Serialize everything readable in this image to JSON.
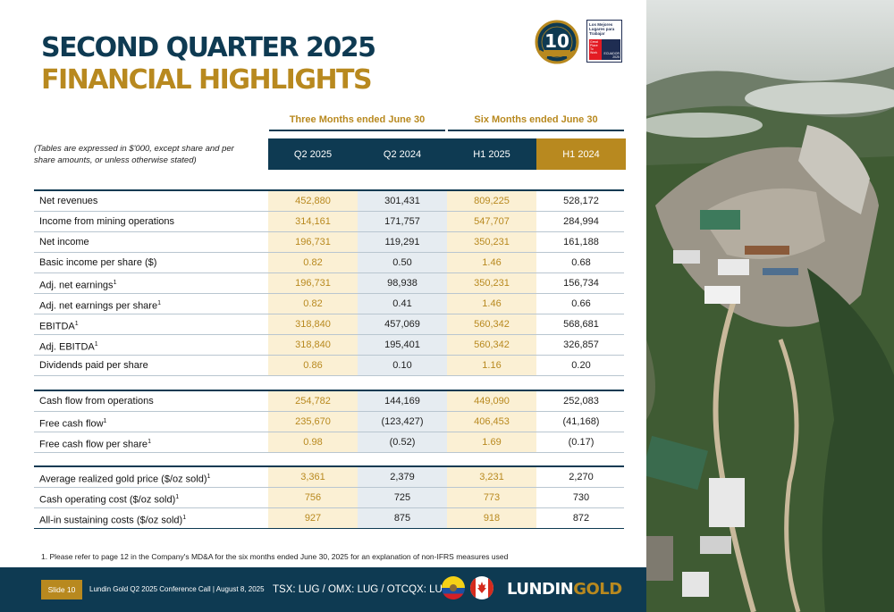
{
  "header": {
    "title_line1": "SECOND QUARTER 2025",
    "title_line2": "FINANCIAL HIGHLIGHTS",
    "anniversary_badge": "10",
    "gptw": {
      "heading": "Los Mejores Lugares para Trabajar",
      "left_block": "Great Place To Work",
      "right_block": "ECUADOR 2025"
    }
  },
  "table": {
    "group_headers": [
      "Three Months ended June 30",
      "Six Months ended June 30"
    ],
    "note": "(Tables are expressed in $'000, except share and per share amounts, or unless otherwise stated)",
    "columns": [
      "Q2 2025",
      "Q2 2024",
      "H1 2025",
      "H1 2024"
    ],
    "column_colors": [
      "#0e3a52",
      "#0e3a52",
      "#0e3a52",
      "#b8891f"
    ],
    "sections": [
      {
        "rows": [
          {
            "label": "Net revenues",
            "sup": "",
            "values": [
              "452,880",
              "301,431",
              "809,225",
              "528,172"
            ]
          },
          {
            "label": "Income from mining operations",
            "sup": "",
            "values": [
              "314,161",
              "171,757",
              "547,707",
              "284,994"
            ]
          },
          {
            "label": "Net income",
            "sup": "",
            "values": [
              "196,731",
              "119,291",
              "350,231",
              "161,188"
            ]
          },
          {
            "label": "Basic income per share ($)",
            "sup": "",
            "values": [
              "0.82",
              "0.50",
              "1.46",
              "0.68"
            ]
          },
          {
            "label": "Adj. net earnings",
            "sup": "1",
            "values": [
              "196,731",
              "98,938",
              "350,231",
              "156,734"
            ]
          },
          {
            "label": "Adj. net earnings per share",
            "sup": "1",
            "values": [
              "0.82",
              "0.41",
              "1.46",
              "0.66"
            ]
          },
          {
            "label": "EBITDA",
            "sup": "1",
            "values": [
              "318,840",
              "457,069",
              "560,342",
              "568,681"
            ]
          },
          {
            "label": "Adj. EBITDA",
            "sup": "1",
            "values": [
              "318,840",
              "195,401",
              "560,342",
              "326,857"
            ]
          },
          {
            "label": "Dividends paid per share",
            "sup": "",
            "values": [
              "0.86",
              "0.10",
              "1.16",
              "0.20"
            ]
          }
        ]
      },
      {
        "rows": [
          {
            "label": "Cash flow from operations",
            "sup": "",
            "values": [
              "254,782",
              "144,169",
              "449,090",
              "252,083"
            ]
          },
          {
            "label": "Free cash flow",
            "sup": "1",
            "values": [
              "235,670",
              "(123,427)",
              "406,453",
              "(41,168)"
            ]
          },
          {
            "label": "Free cash flow per share",
            "sup": "1",
            "values": [
              "0.98",
              "(0.52)",
              "1.69",
              "(0.17)"
            ]
          }
        ]
      },
      {
        "rows": [
          {
            "label": "Average realized gold price ($/oz sold)",
            "sup": "1",
            "values": [
              "3,361",
              "2,379",
              "3,231",
              "2,270"
            ]
          },
          {
            "label": "Cash operating cost ($/oz sold)",
            "sup": "1",
            "values": [
              "756",
              "725",
              "773",
              "730"
            ]
          },
          {
            "label": "All-in sustaining costs ($/oz sold)",
            "sup": "1",
            "values": [
              "927",
              "875",
              "918",
              "872"
            ]
          }
        ]
      }
    ]
  },
  "footnote": "1.   Please refer to page 12 in the Company's MD&A for the six months ended June 30, 2025 for an explanation of non-IFRS measures used",
  "footer": {
    "slide_label": "Slide 10",
    "event": "Lundin Gold Q2 2025 Conference Call | August 8, 2025",
    "tickers": "TSX: LUG / OMX: LUG / OTCQX: LUGDF",
    "logo_part1": "LUNDIN",
    "logo_part2": "GOLD"
  }
}
